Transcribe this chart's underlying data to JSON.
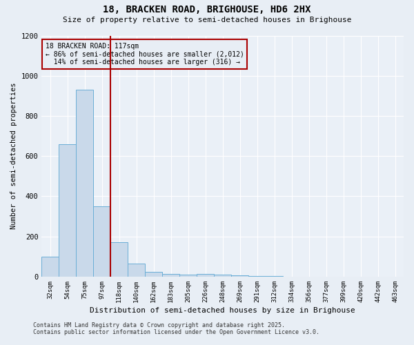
{
  "title1": "18, BRACKEN ROAD, BRIGHOUSE, HD6 2HX",
  "title2": "Size of property relative to semi-detached houses in Brighouse",
  "xlabel": "Distribution of semi-detached houses by size in Brighouse",
  "ylabel": "Number of semi-detached properties",
  "categories": [
    "32sqm",
    "54sqm",
    "75sqm",
    "97sqm",
    "118sqm",
    "140sqm",
    "162sqm",
    "183sqm",
    "205sqm",
    "226sqm",
    "248sqm",
    "269sqm",
    "291sqm",
    "312sqm",
    "334sqm",
    "356sqm",
    "377sqm",
    "399sqm",
    "420sqm",
    "442sqm",
    "463sqm"
  ],
  "values": [
    100,
    660,
    930,
    350,
    170,
    65,
    25,
    15,
    10,
    15,
    10,
    5,
    2,
    2,
    1,
    0,
    0,
    0,
    0,
    0,
    0
  ],
  "bar_color": "#c9d9ea",
  "bar_edgecolor": "#6aaed6",
  "reference_line_color": "#aa0000",
  "annotation_line1": "18 BRACKEN ROAD: 117sqm",
  "annotation_line2": "← 86% of semi-detached houses are smaller (2,012)",
  "annotation_line3": "  14% of semi-detached houses are larger (316) →",
  "annotation_box_edgecolor": "#aa0000",
  "ylim": [
    0,
    1200
  ],
  "yticks": [
    0,
    200,
    400,
    600,
    800,
    1000,
    1200
  ],
  "footer1": "Contains HM Land Registry data © Crown copyright and database right 2025.",
  "footer2": "Contains public sector information licensed under the Open Government Licence v3.0.",
  "background_color": "#e8eef5",
  "plot_background": "#eaf0f7",
  "grid_color": "#ffffff"
}
